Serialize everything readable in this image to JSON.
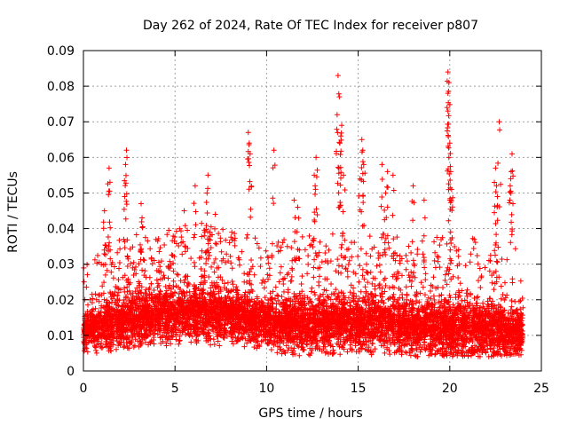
{
  "chart_data": {
    "type": "scatter",
    "title": "Day 262 of 2024, Rate Of TEC Index for receiver p807",
    "xlabel": "GPS time / hours",
    "ylabel": "ROTI / TECUs",
    "xlim": [
      0,
      25
    ],
    "ylim": [
      0,
      0.09
    ],
    "x_ticks": [
      0,
      5,
      10,
      15,
      20,
      25
    ],
    "x_tick_labels": [
      "0",
      "5",
      "10",
      "15",
      "20",
      "25"
    ],
    "y_ticks": [
      0,
      0.01,
      0.02,
      0.03,
      0.04,
      0.05,
      0.06,
      0.07,
      0.08,
      0.09
    ],
    "y_tick_labels": [
      "0",
      "0.01",
      "0.02",
      "0.03",
      "0.04",
      "0.05",
      "0.06",
      "0.07",
      "0.08",
      "0.09"
    ],
    "grid": true,
    "marker": "+",
    "color": "#ff0000",
    "data_range_hours": [
      0,
      24
    ],
    "baseline": {
      "x": [
        0,
        2,
        4,
        6,
        8,
        10,
        12,
        14,
        16,
        18,
        20,
        22,
        24
      ],
      "median": [
        0.011,
        0.013,
        0.015,
        0.016,
        0.015,
        0.013,
        0.012,
        0.013,
        0.013,
        0.012,
        0.011,
        0.011,
        0.01
      ],
      "upper": [
        0.02,
        0.026,
        0.029,
        0.03,
        0.028,
        0.025,
        0.026,
        0.027,
        0.027,
        0.025,
        0.026,
        0.025,
        0.022
      ],
      "lower": [
        0.004,
        0.006,
        0.007,
        0.007,
        0.007,
        0.005,
        0.004,
        0.004,
        0.004,
        0.004,
        0.004,
        0.004,
        0.004
      ]
    },
    "spikes": [
      {
        "x": 1.4,
        "y": 0.057
      },
      {
        "x": 1.45,
        "y": 0.053
      },
      {
        "x": 1.15,
        "y": 0.045
      },
      {
        "x": 2.35,
        "y": 0.062
      },
      {
        "x": 2.3,
        "y": 0.058
      },
      {
        "x": 2.25,
        "y": 0.049
      },
      {
        "x": 3.15,
        "y": 0.047
      },
      {
        "x": 3.2,
        "y": 0.043
      },
      {
        "x": 5.5,
        "y": 0.045
      },
      {
        "x": 6.1,
        "y": 0.052
      },
      {
        "x": 6.8,
        "y": 0.055
      },
      {
        "x": 6.75,
        "y": 0.05
      },
      {
        "x": 7.2,
        "y": 0.044
      },
      {
        "x": 8.1,
        "y": 0.039
      },
      {
        "x": 9.0,
        "y": 0.067
      },
      {
        "x": 9.05,
        "y": 0.064
      },
      {
        "x": 9.1,
        "y": 0.061
      },
      {
        "x": 10.4,
        "y": 0.062
      },
      {
        "x": 11.5,
        "y": 0.048
      },
      {
        "x": 11.7,
        "y": 0.046
      },
      {
        "x": 12.7,
        "y": 0.06
      },
      {
        "x": 12.6,
        "y": 0.055
      },
      {
        "x": 12.65,
        "y": 0.052
      },
      {
        "x": 13.9,
        "y": 0.083
      },
      {
        "x": 13.85,
        "y": 0.072
      },
      {
        "x": 14.1,
        "y": 0.069
      },
      {
        "x": 14.05,
        "y": 0.066
      },
      {
        "x": 14.0,
        "y": 0.064
      },
      {
        "x": 13.95,
        "y": 0.057
      },
      {
        "x": 14.2,
        "y": 0.055
      },
      {
        "x": 15.2,
        "y": 0.065
      },
      {
        "x": 15.25,
        "y": 0.062
      },
      {
        "x": 15.3,
        "y": 0.058
      },
      {
        "x": 15.1,
        "y": 0.054
      },
      {
        "x": 16.3,
        "y": 0.058
      },
      {
        "x": 16.6,
        "y": 0.056
      },
      {
        "x": 16.9,
        "y": 0.055
      },
      {
        "x": 16.5,
        "y": 0.05
      },
      {
        "x": 18.0,
        "y": 0.052
      },
      {
        "x": 18.6,
        "y": 0.048
      },
      {
        "x": 19.9,
        "y": 0.084
      },
      {
        "x": 19.95,
        "y": 0.081
      },
      {
        "x": 19.9,
        "y": 0.078
      },
      {
        "x": 19.85,
        "y": 0.074
      },
      {
        "x": 20.0,
        "y": 0.064
      },
      {
        "x": 19.95,
        "y": 0.06
      },
      {
        "x": 20.05,
        "y": 0.056
      },
      {
        "x": 20.1,
        "y": 0.051
      },
      {
        "x": 20.0,
        "y": 0.048
      },
      {
        "x": 22.5,
        "y": 0.057
      },
      {
        "x": 22.55,
        "y": 0.052
      },
      {
        "x": 22.6,
        "y": 0.049
      },
      {
        "x": 22.7,
        "y": 0.07
      },
      {
        "x": 23.4,
        "y": 0.061
      },
      {
        "x": 23.35,
        "y": 0.056
      },
      {
        "x": 23.3,
        "y": 0.052
      },
      {
        "x": 23.45,
        "y": 0.047
      }
    ]
  }
}
